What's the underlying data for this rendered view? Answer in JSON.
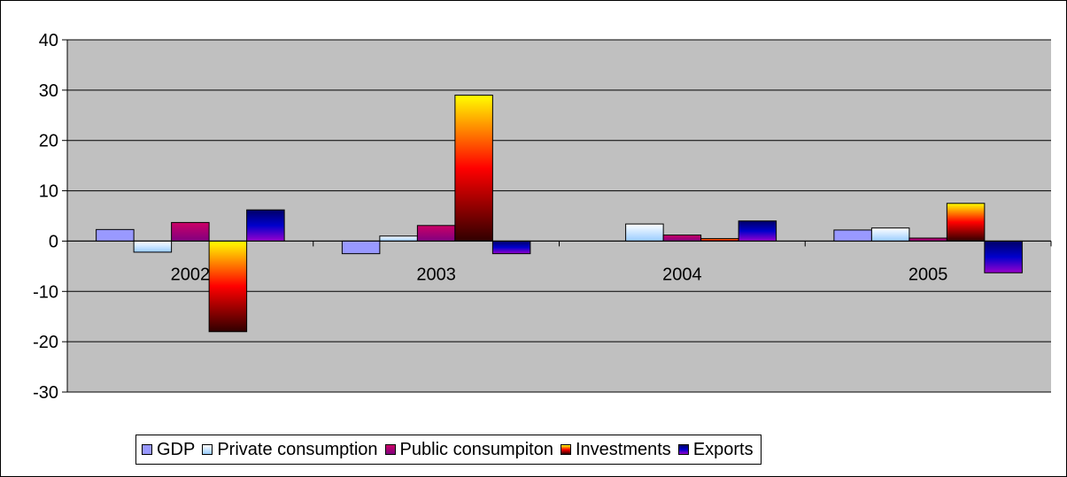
{
  "chart_data": {
    "type": "bar",
    "categories": [
      "2002",
      "2003",
      "2004",
      "2005"
    ],
    "series": [
      {
        "name": "GDP",
        "values": [
          2.3,
          -2.5,
          0,
          2.2
        ],
        "colors": [
          "#9999ff",
          "#9999ff"
        ]
      },
      {
        "name": "Private consumption",
        "values": [
          -2.2,
          1.0,
          3.4,
          2.6
        ],
        "colors": [
          "#ffffff",
          "#99ccff"
        ]
      },
      {
        "name": "Public consumpiton",
        "values": [
          3.7,
          3.1,
          1.2,
          0.6
        ],
        "colors": [
          "#cc0066",
          "#800080"
        ]
      },
      {
        "name": "Investments",
        "values": [
          -18.0,
          29.0,
          0.5,
          7.5
        ],
        "colors": [
          "#ffff00",
          "#ff0000",
          "#300000"
        ]
      },
      {
        "name": "Exports",
        "values": [
          6.2,
          -2.5,
          4.0,
          -6.3
        ],
        "colors": [
          "#000066",
          "#0000cc",
          "#9900cc"
        ]
      }
    ],
    "ylim": [
      -30,
      40
    ],
    "yticks": [
      -30,
      -20,
      -10,
      0,
      10,
      20,
      30,
      40
    ],
    "grid": true,
    "legend_position": "bottom",
    "plot_background": "#c0c0c0",
    "title": "",
    "xlabel": "",
    "ylabel": ""
  }
}
